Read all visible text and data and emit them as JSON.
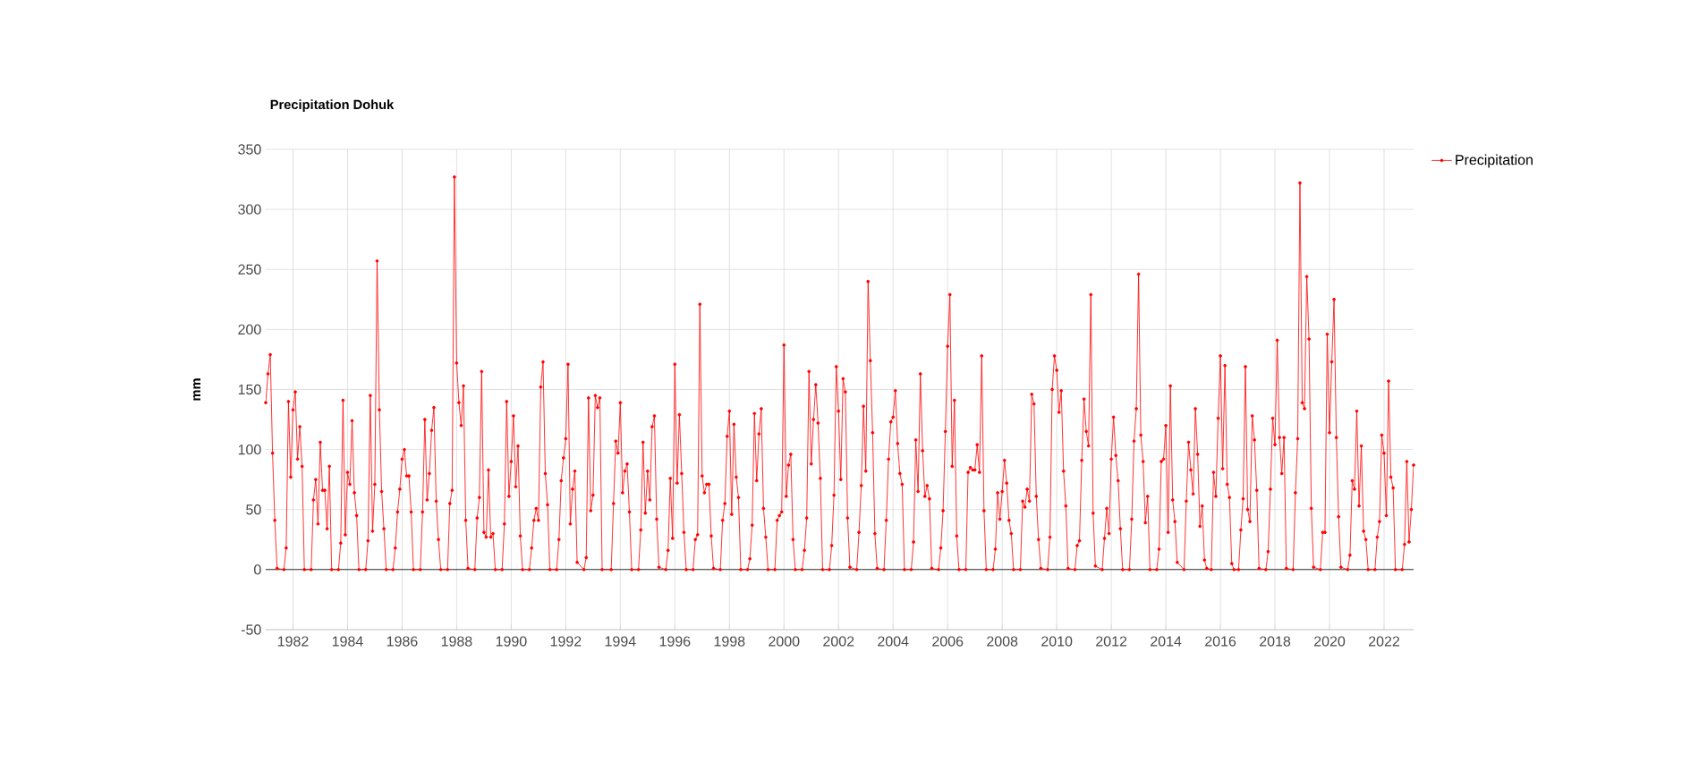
{
  "chart_data": {
    "type": "line",
    "title": "Precipitation Dohuk",
    "ylabel": "mm",
    "x": [
      "1981-01",
      "1981-02",
      "1981-03",
      "1981-04",
      "1981-05",
      "1981-06",
      "1981-09",
      "1981-10",
      "1981-11",
      "1981-12",
      "1982-01",
      "1982-02",
      "1982-03",
      "1982-04",
      "1982-05",
      "1982-06",
      "1982-09",
      "1982-10",
      "1982-11",
      "1982-12",
      "1983-01",
      "1983-02",
      "1983-03",
      "1983-04",
      "1983-05",
      "1983-06",
      "1983-09",
      "1983-10",
      "1983-11",
      "1983-12",
      "1984-01",
      "1984-02",
      "1984-03",
      "1984-04",
      "1984-05",
      "1984-06",
      "1984-09",
      "1984-10",
      "1984-11",
      "1984-12",
      "1985-01",
      "1985-02",
      "1985-03",
      "1985-04",
      "1985-05",
      "1985-06",
      "1985-09",
      "1985-10",
      "1985-11",
      "1985-12",
      "1986-01",
      "1986-02",
      "1986-03",
      "1986-04",
      "1986-05",
      "1986-06",
      "1986-09",
      "1986-10",
      "1986-11",
      "1986-12",
      "1987-01",
      "1987-02",
      "1987-03",
      "1987-04",
      "1987-05",
      "1987-06",
      "1987-09",
      "1987-10",
      "1987-11",
      "1987-12",
      "1988-01",
      "1988-02",
      "1988-03",
      "1988-04",
      "1988-05",
      "1988-06",
      "1988-09",
      "1988-10",
      "1988-11",
      "1988-12",
      "1989-01",
      "1989-02",
      "1989-03",
      "1989-04",
      "1989-05",
      "1989-06",
      "1989-09",
      "1989-10",
      "1989-11",
      "1989-12",
      "1990-01",
      "1990-02",
      "1990-03",
      "1990-04",
      "1990-05",
      "1990-06",
      "1990-09",
      "1990-10",
      "1990-11",
      "1990-12",
      "1991-01",
      "1991-02",
      "1991-03",
      "1991-04",
      "1991-05",
      "1991-06",
      "1991-09",
      "1991-10",
      "1991-11",
      "1991-12",
      "1992-01",
      "1992-02",
      "1992-03",
      "1992-04",
      "1992-05",
      "1992-06",
      "1992-09",
      "1992-10",
      "1992-11",
      "1992-12",
      "1993-01",
      "1993-02",
      "1993-03",
      "1993-04",
      "1993-05",
      "1993-09",
      "1993-10",
      "1993-11",
      "1993-12",
      "1994-01",
      "1994-02",
      "1994-03",
      "1994-04",
      "1994-05",
      "1994-06",
      "1994-09",
      "1994-10",
      "1994-11",
      "1994-12",
      "1995-01",
      "1995-02",
      "1995-03",
      "1995-04",
      "1995-05",
      "1995-06",
      "1995-09",
      "1995-10",
      "1995-11",
      "1995-12",
      "1996-01",
      "1996-02",
      "1996-03",
      "1996-04",
      "1996-05",
      "1996-06",
      "1996-09",
      "1996-10",
      "1996-11",
      "1996-12",
      "1997-01",
      "1997-02",
      "1997-03",
      "1997-04",
      "1997-05",
      "1997-06",
      "1997-09",
      "1997-10",
      "1997-11",
      "1997-12",
      "1998-01",
      "1998-02",
      "1998-03",
      "1998-04",
      "1998-05",
      "1998-06",
      "1998-09",
      "1998-10",
      "1998-11",
      "1998-12",
      "1999-01",
      "1999-02",
      "1999-03",
      "1999-04",
      "1999-05",
      "1999-06",
      "1999-09",
      "1999-10",
      "1999-11",
      "1999-12",
      "2000-01",
      "2000-02",
      "2000-03",
      "2000-04",
      "2000-05",
      "2000-06",
      "2000-09",
      "2000-10",
      "2000-11",
      "2000-12",
      "2001-01",
      "2001-02",
      "2001-03",
      "2001-04",
      "2001-05",
      "2001-06",
      "2001-09",
      "2001-10",
      "2001-11",
      "2001-12",
      "2002-01",
      "2002-02",
      "2002-03",
      "2002-04",
      "2002-05",
      "2002-06",
      "2002-09",
      "2002-10",
      "2002-11",
      "2002-12",
      "2003-01",
      "2003-02",
      "2003-03",
      "2003-04",
      "2003-05",
      "2003-06",
      "2003-09",
      "2003-10",
      "2003-11",
      "2003-12",
      "2004-01",
      "2004-02",
      "2004-03",
      "2004-04",
      "2004-05",
      "2004-06",
      "2004-09",
      "2004-10",
      "2004-11",
      "2004-12",
      "2005-01",
      "2005-02",
      "2005-03",
      "2005-04",
      "2005-05",
      "2005-06",
      "2005-09",
      "2005-10",
      "2005-11",
      "2005-12",
      "2006-01",
      "2006-02",
      "2006-03",
      "2006-04",
      "2006-05",
      "2006-06",
      "2006-09",
      "2006-10",
      "2006-11",
      "2006-12",
      "2007-01",
      "2007-02",
      "2007-03",
      "2007-04",
      "2007-05",
      "2007-06",
      "2007-09",
      "2007-10",
      "2007-11",
      "2007-12",
      "2008-01",
      "2008-02",
      "2008-03",
      "2008-04",
      "2008-05",
      "2008-06",
      "2008-09",
      "2008-10",
      "2008-11",
      "2008-12",
      "2009-01",
      "2009-02",
      "2009-03",
      "2009-04",
      "2009-05",
      "2009-06",
      "2009-09",
      "2009-10",
      "2009-11",
      "2009-12",
      "2010-01",
      "2010-02",
      "2010-03",
      "2010-04",
      "2010-05",
      "2010-06",
      "2010-09",
      "2010-10",
      "2010-11",
      "2010-12",
      "2011-01",
      "2011-02",
      "2011-03",
      "2011-04",
      "2011-05",
      "2011-06",
      "2011-09",
      "2011-10",
      "2011-11",
      "2011-12",
      "2012-01",
      "2012-02",
      "2012-03",
      "2012-04",
      "2012-05",
      "2012-06",
      "2012-09",
      "2012-10",
      "2012-11",
      "2012-12",
      "2013-01",
      "2013-02",
      "2013-03",
      "2013-04",
      "2013-05",
      "2013-06",
      "2013-09",
      "2013-10",
      "2013-11",
      "2013-12",
      "2014-01",
      "2014-02",
      "2014-03",
      "2014-04",
      "2014-05",
      "2014-06",
      "2014-09",
      "2014-10",
      "2014-11",
      "2014-12",
      "2015-01",
      "2015-02",
      "2015-03",
      "2015-04",
      "2015-05",
      "2015-06",
      "2015-07",
      "2015-09",
      "2015-10",
      "2015-11",
      "2015-12",
      "2016-01",
      "2016-02",
      "2016-03",
      "2016-04",
      "2016-05",
      "2016-06",
      "2016-07",
      "2016-09",
      "2016-10",
      "2016-11",
      "2016-12",
      "2017-01",
      "2017-02",
      "2017-03",
      "2017-04",
      "2017-05",
      "2017-06",
      "2017-09",
      "2017-10",
      "2017-11",
      "2017-12",
      "2018-01",
      "2018-02",
      "2018-03",
      "2018-04",
      "2018-05",
      "2018-06",
      "2018-09",
      "2018-10",
      "2018-11",
      "2018-12",
      "2019-01",
      "2019-02",
      "2019-03",
      "2019-04",
      "2019-05",
      "2019-06",
      "2019-09",
      "2019-10",
      "2019-11",
      "2019-12",
      "2020-01",
      "2020-02",
      "2020-03",
      "2020-04",
      "2020-05",
      "2020-06",
      "2020-09",
      "2020-10",
      "2020-11",
      "2020-12",
      "2021-01",
      "2021-02",
      "2021-03",
      "2021-04",
      "2021-05",
      "2021-06",
      "2021-09",
      "2021-10",
      "2021-11",
      "2021-12",
      "2022-01",
      "2022-02",
      "2022-03",
      "2022-04",
      "2022-05",
      "2022-06",
      "2022-09",
      "2022-10",
      "2022-11",
      "2022-12",
      "2023-01",
      "2023-02"
    ],
    "series": [
      {
        "name": "Precipitation",
        "color": "#ff0000",
        "values": [
          139,
          163,
          179,
          97,
          41,
          1,
          0,
          18,
          140,
          77,
          133,
          148,
          92,
          119,
          86,
          0,
          0,
          58,
          75,
          38,
          106,
          66,
          66,
          34,
          86,
          0,
          0,
          22,
          141,
          29,
          81,
          71,
          124,
          64,
          45,
          0,
          0,
          24,
          145,
          32,
          71,
          257,
          133,
          65,
          34,
          0,
          0,
          18,
          48,
          67,
          92,
          100,
          78,
          78,
          48,
          0,
          0,
          48,
          125,
          58,
          80,
          116,
          135,
          57,
          25,
          0,
          0,
          55,
          66,
          327,
          172,
          139,
          120,
          153,
          41,
          1,
          0,
          43,
          60,
          165,
          31,
          27,
          83,
          27,
          30,
          0,
          0,
          38,
          140,
          61,
          90,
          128,
          69,
          103,
          28,
          0,
          0,
          18,
          41,
          51,
          41,
          152,
          173,
          80,
          54,
          0,
          0,
          25,
          74,
          93,
          109,
          171,
          38,
          67,
          82,
          6,
          0,
          10,
          143,
          49,
          62,
          145,
          135,
          143,
          0,
          0,
          55,
          107,
          97,
          139,
          64,
          82,
          88,
          48,
          0,
          0,
          33,
          106,
          47,
          82,
          58,
          119,
          128,
          42,
          2,
          0,
          16,
          76,
          26,
          171,
          72,
          129,
          80,
          31,
          0,
          0,
          25,
          29,
          221,
          78,
          64,
          71,
          71,
          28,
          1,
          0,
          41,
          55,
          111,
          132,
          46,
          121,
          77,
          60,
          0,
          0,
          9,
          37,
          130,
          74,
          113,
          134,
          51,
          27,
          0,
          0,
          41,
          45,
          48,
          187,
          61,
          87,
          96,
          25,
          0,
          0,
          16,
          43,
          165,
          88,
          125,
          154,
          122,
          76,
          0,
          0,
          20,
          62,
          169,
          132,
          75,
          159,
          148,
          43,
          2,
          0,
          31,
          70,
          136,
          82,
          240,
          174,
          114,
          30,
          1,
          0,
          41,
          92,
          123,
          127,
          149,
          105,
          80,
          71,
          0,
          0,
          23,
          108,
          65,
          163,
          99,
          61,
          70,
          59,
          1,
          0,
          18,
          49,
          115,
          186,
          229,
          86,
          141,
          28,
          0,
          0,
          81,
          85,
          83,
          83,
          104,
          81,
          178,
          49,
          0,
          0,
          17,
          64,
          42,
          65,
          91,
          72,
          41,
          30,
          0,
          0,
          57,
          52,
          67,
          57,
          146,
          138,
          61,
          25,
          1,
          0,
          27,
          150,
          178,
          166,
          131,
          149,
          82,
          53,
          1,
          0,
          20,
          24,
          91,
          142,
          115,
          103,
          229,
          47,
          3,
          0,
          26,
          51,
          30,
          92,
          127,
          95,
          74,
          34,
          0,
          0,
          42,
          107,
          134,
          246,
          112,
          90,
          39,
          61,
          0,
          0,
          17,
          90,
          92,
          120,
          31,
          153,
          58,
          40,
          6,
          0,
          57,
          106,
          83,
          63,
          134,
          96,
          36,
          53,
          8,
          1,
          0,
          81,
          61,
          126,
          178,
          84,
          170,
          71,
          60,
          5,
          0,
          0,
          33,
          59,
          169,
          50,
          40,
          128,
          108,
          66,
          1,
          0,
          15,
          67,
          126,
          104,
          191,
          110,
          80,
          110,
          1,
          0,
          64,
          109,
          322,
          139,
          134,
          244,
          192,
          51,
          2,
          0,
          31,
          31,
          196,
          114,
          173,
          225,
          110,
          44,
          2,
          0,
          12,
          74,
          67,
          132,
          53,
          103,
          32,
          25,
          0,
          0,
          27,
          40,
          112,
          97,
          45,
          157,
          77,
          68,
          0,
          0,
          21,
          90,
          23,
          50,
          87
        ]
      }
    ],
    "xlim": [
      "1981-01",
      "2023-02"
    ],
    "xticks": [
      "1982",
      "1984",
      "1986",
      "1988",
      "1990",
      "1992",
      "1994",
      "1996",
      "1998",
      "2000",
      "2002",
      "2004",
      "2006",
      "2008",
      "2010",
      "2012",
      "2014",
      "2016",
      "2018",
      "2020",
      "2022"
    ],
    "ylim": [
      -50,
      350
    ],
    "yticks": [
      -50,
      0,
      50,
      100,
      150,
      200,
      250,
      300,
      350
    ],
    "ref_lines": [
      {
        "axis": "y",
        "value": 0,
        "color": "#333333"
      }
    ],
    "grid": true,
    "legend": "top right",
    "marker": "circle",
    "line_style": "solid"
  }
}
